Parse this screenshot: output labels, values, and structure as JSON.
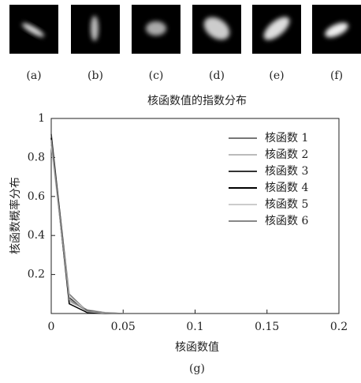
{
  "figure": {
    "panels": [
      {
        "label": "(a)"
      },
      {
        "label": "(b)"
      },
      {
        "label": "(c)"
      },
      {
        "label": "(d)"
      },
      {
        "label": "(e)"
      },
      {
        "label": "(f)"
      }
    ]
  },
  "chart_data": {
    "type": "line",
    "title": "核函数值的指数分布",
    "x_label": "核函数值",
    "y_label": "核函数概率分布",
    "caption": "(g)",
    "x": [
      0,
      0.0125,
      0.025,
      0.0375,
      0.05
    ],
    "series": [
      {
        "name": "核函数 1",
        "color": "#777777",
        "values": [
          0.9,
          0.1,
          0.01,
          0,
          0
        ]
      },
      {
        "name": "核函数 2",
        "color": "#bbbbbb",
        "values": [
          0.88,
          0.06,
          0.02,
          0.005,
          0
        ]
      },
      {
        "name": "核函数 3",
        "color": "#333333",
        "values": [
          0.92,
          0.08,
          0.015,
          0.003,
          0
        ]
      },
      {
        "name": "核函数 4",
        "color": "#000000",
        "values": [
          0.9,
          0.05,
          0.005,
          0,
          0
        ]
      },
      {
        "name": "核函数 5",
        "color": "#cccccc",
        "values": [
          0.86,
          0.09,
          0.01,
          0.002,
          0
        ]
      },
      {
        "name": "核函数 6",
        "color": "#888888",
        "values": [
          0.89,
          0.07,
          0.012,
          0.004,
          0
        ]
      }
    ],
    "xlim": [
      0,
      0.2
    ],
    "ylim": [
      0,
      1
    ],
    "xticks": [
      0,
      0.05,
      0.1,
      0.15,
      0.2
    ],
    "yticks": [
      0.2,
      0.4,
      0.6,
      0.8,
      1
    ],
    "grid": false,
    "legend": "upper-right"
  }
}
